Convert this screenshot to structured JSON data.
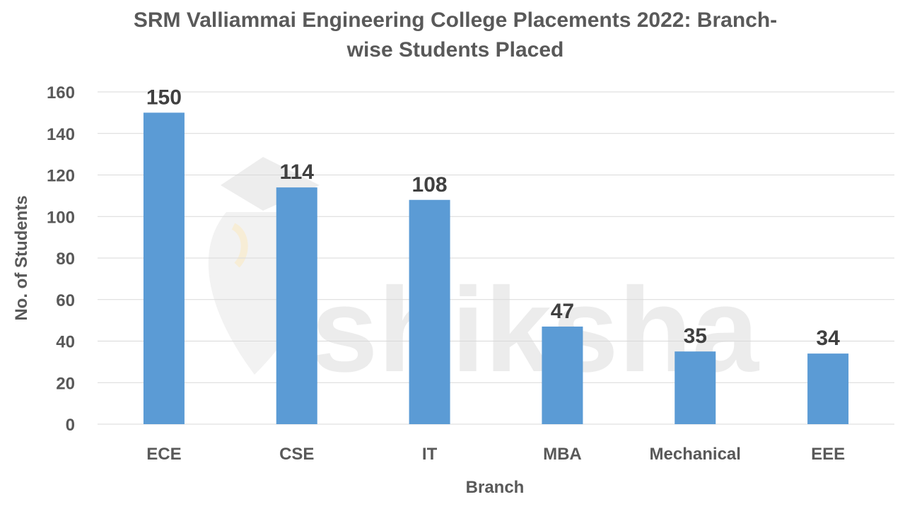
{
  "watermark": {
    "text": "shiksha",
    "icon": "graduation-cap-icon"
  },
  "chart_data": {
    "type": "bar",
    "title_lines": [
      "SRM Valliammai Engineering College Placements 2022: Branch-",
      "wise Students Placed"
    ],
    "xlabel": "Branch",
    "ylabel": "No. of Students",
    "categories": [
      "ECE",
      "CSE",
      "IT",
      "MBA",
      "Mechanical",
      "EEE"
    ],
    "values": [
      150,
      114,
      108,
      47,
      35,
      34
    ],
    "ylim": [
      0,
      160
    ],
    "yticks": [
      0,
      20,
      40,
      60,
      80,
      100,
      120,
      140,
      160
    ],
    "grid": true,
    "legend": "none",
    "bar_color": "#5b9bd5",
    "grid_color": "#d9d9d9"
  }
}
